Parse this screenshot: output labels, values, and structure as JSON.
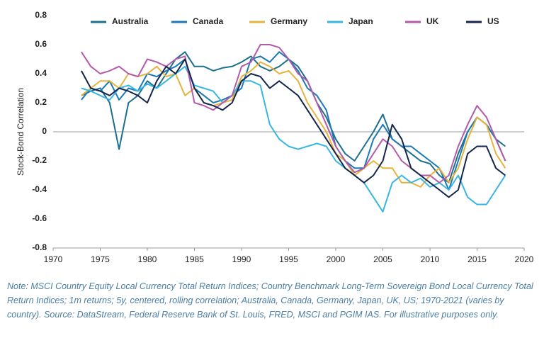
{
  "chart_data": {
    "type": "line",
    "y_label": "Stock-Bond Correlation",
    "x": [
      1973,
      1974,
      1975,
      1976,
      1977,
      1978,
      1979,
      1980,
      1981,
      1982,
      1983,
      1984,
      1985,
      1986,
      1987,
      1988,
      1989,
      1990,
      1991,
      1992,
      1993,
      1994,
      1995,
      1996,
      1997,
      1998,
      1999,
      2000,
      2001,
      2002,
      2003,
      2004,
      2005,
      2006,
      2007,
      2008,
      2009,
      2010,
      2011,
      2012,
      2013,
      2014,
      2015,
      2016,
      2017,
      2018
    ],
    "series": [
      {
        "name": "Australia",
        "color": "#1d6f8f",
        "values": [
          0.25,
          0.28,
          0.3,
          0.2,
          -0.12,
          0.2,
          0.25,
          0.35,
          0.3,
          0.4,
          0.5,
          0.55,
          0.45,
          0.45,
          0.42,
          0.44,
          0.45,
          0.48,
          0.52,
          0.45,
          0.42,
          0.45,
          0.5,
          0.45,
          0.35,
          0.2,
          0.1,
          -0.05,
          -0.15,
          -0.2,
          -0.1,
          0.0,
          0.12,
          -0.05,
          -0.1,
          -0.15,
          -0.2,
          -0.22,
          -0.3,
          -0.35,
          -0.15,
          0.0,
          0.1,
          0.05,
          -0.05,
          -0.1
        ]
      },
      {
        "name": "Canada",
        "color": "#1b78b9",
        "values": [
          0.22,
          0.3,
          0.28,
          0.35,
          0.22,
          0.3,
          0.28,
          0.4,
          0.38,
          0.42,
          0.45,
          0.5,
          0.3,
          0.25,
          0.2,
          0.22,
          0.25,
          0.3,
          0.5,
          0.52,
          0.48,
          0.55,
          0.5,
          0.42,
          0.3,
          0.25,
          0.15,
          -0.1,
          -0.2,
          -0.25,
          -0.25,
          -0.05,
          0.05,
          -0.05,
          -0.1,
          -0.1,
          -0.15,
          -0.2,
          -0.25,
          -0.4,
          -0.2,
          0.0,
          0.1,
          0.05,
          -0.05,
          -0.2
        ]
      },
      {
        "name": "Germany",
        "color": "#e6b43c",
        "values": [
          0.25,
          0.3,
          0.35,
          0.35,
          0.3,
          0.4,
          0.38,
          0.4,
          0.45,
          0.38,
          0.4,
          0.25,
          0.3,
          0.2,
          0.18,
          0.2,
          0.22,
          0.38,
          0.42,
          0.48,
          0.45,
          0.4,
          0.42,
          0.35,
          0.2,
          0.1,
          0.0,
          -0.15,
          -0.2,
          -0.3,
          -0.25,
          -0.2,
          -0.25,
          -0.25,
          -0.35,
          -0.35,
          -0.38,
          -0.3,
          -0.25,
          -0.35,
          -0.25,
          -0.05,
          0.1,
          0.05,
          -0.15,
          -0.25
        ]
      },
      {
        "name": "Japan",
        "color": "#37b6e2",
        "values": [
          0.3,
          0.28,
          0.25,
          0.22,
          0.3,
          0.32,
          0.28,
          0.33,
          0.3,
          0.35,
          0.4,
          0.45,
          0.32,
          0.3,
          0.28,
          0.2,
          0.25,
          0.35,
          0.35,
          0.32,
          0.05,
          -0.05,
          -0.1,
          -0.12,
          -0.1,
          -0.08,
          -0.1,
          -0.2,
          -0.25,
          -0.3,
          -0.35,
          -0.45,
          -0.55,
          -0.35,
          -0.3,
          -0.35,
          -0.32,
          -0.38,
          -0.35,
          -0.4,
          -0.3,
          -0.45,
          -0.5,
          -0.5,
          -0.4,
          -0.3
        ]
      },
      {
        "name": "UK",
        "color": "#b35aab",
        "values": [
          0.55,
          0.45,
          0.4,
          0.42,
          0.45,
          0.4,
          0.38,
          0.5,
          0.48,
          0.45,
          0.5,
          0.52,
          0.2,
          0.18,
          0.15,
          0.2,
          0.25,
          0.45,
          0.48,
          0.6,
          0.6,
          0.58,
          0.5,
          0.4,
          0.35,
          0.2,
          0.05,
          -0.1,
          -0.2,
          -0.28,
          -0.25,
          -0.15,
          -0.05,
          -0.1,
          -0.2,
          -0.25,
          -0.3,
          -0.3,
          -0.35,
          -0.3,
          -0.1,
          0.05,
          0.18,
          0.1,
          -0.05,
          -0.2
        ]
      },
      {
        "name": "US",
        "color": "#14264f",
        "values": [
          0.42,
          0.3,
          0.28,
          0.25,
          0.3,
          0.28,
          0.25,
          0.2,
          0.35,
          0.45,
          0.4,
          0.5,
          0.3,
          0.2,
          0.18,
          0.15,
          0.2,
          0.35,
          0.4,
          0.38,
          0.3,
          0.35,
          0.3,
          0.25,
          0.15,
          0.05,
          -0.05,
          -0.15,
          -0.25,
          -0.3,
          -0.35,
          -0.3,
          -0.2,
          0.05,
          -0.05,
          -0.25,
          -0.3,
          -0.35,
          -0.4,
          -0.45,
          -0.4,
          -0.15,
          -0.1,
          -0.1,
          -0.25,
          -0.3
        ]
      }
    ],
    "xlim": [
      1970,
      2020
    ],
    "xticks": [
      1970,
      1975,
      1980,
      1985,
      1990,
      1995,
      2000,
      2005,
      2010,
      2015,
      2020
    ],
    "ylim": [
      -0.8,
      0.8
    ],
    "yticks": [
      0.8,
      0.6,
      0.4,
      0.2,
      0,
      -0.2,
      -0.4,
      -0.6,
      -0.8
    ],
    "zero_line": true,
    "legend": "top",
    "note": "Note: MSCI Country Equity Local Currency Total Return Indices; Country Benchmark Long-Term Sovereign Bond Local Currency Total Return Indices; 1m returns; 5y, centered, rolling correlation; Australia, Canada, Germany, Japan, UK, US; 1970-2021 (varies by country). Source: DataStream, Federal Reserve Bank of St. Louis, FRED, MSCI and PGIM IAS. For illustrative purposes only."
  }
}
